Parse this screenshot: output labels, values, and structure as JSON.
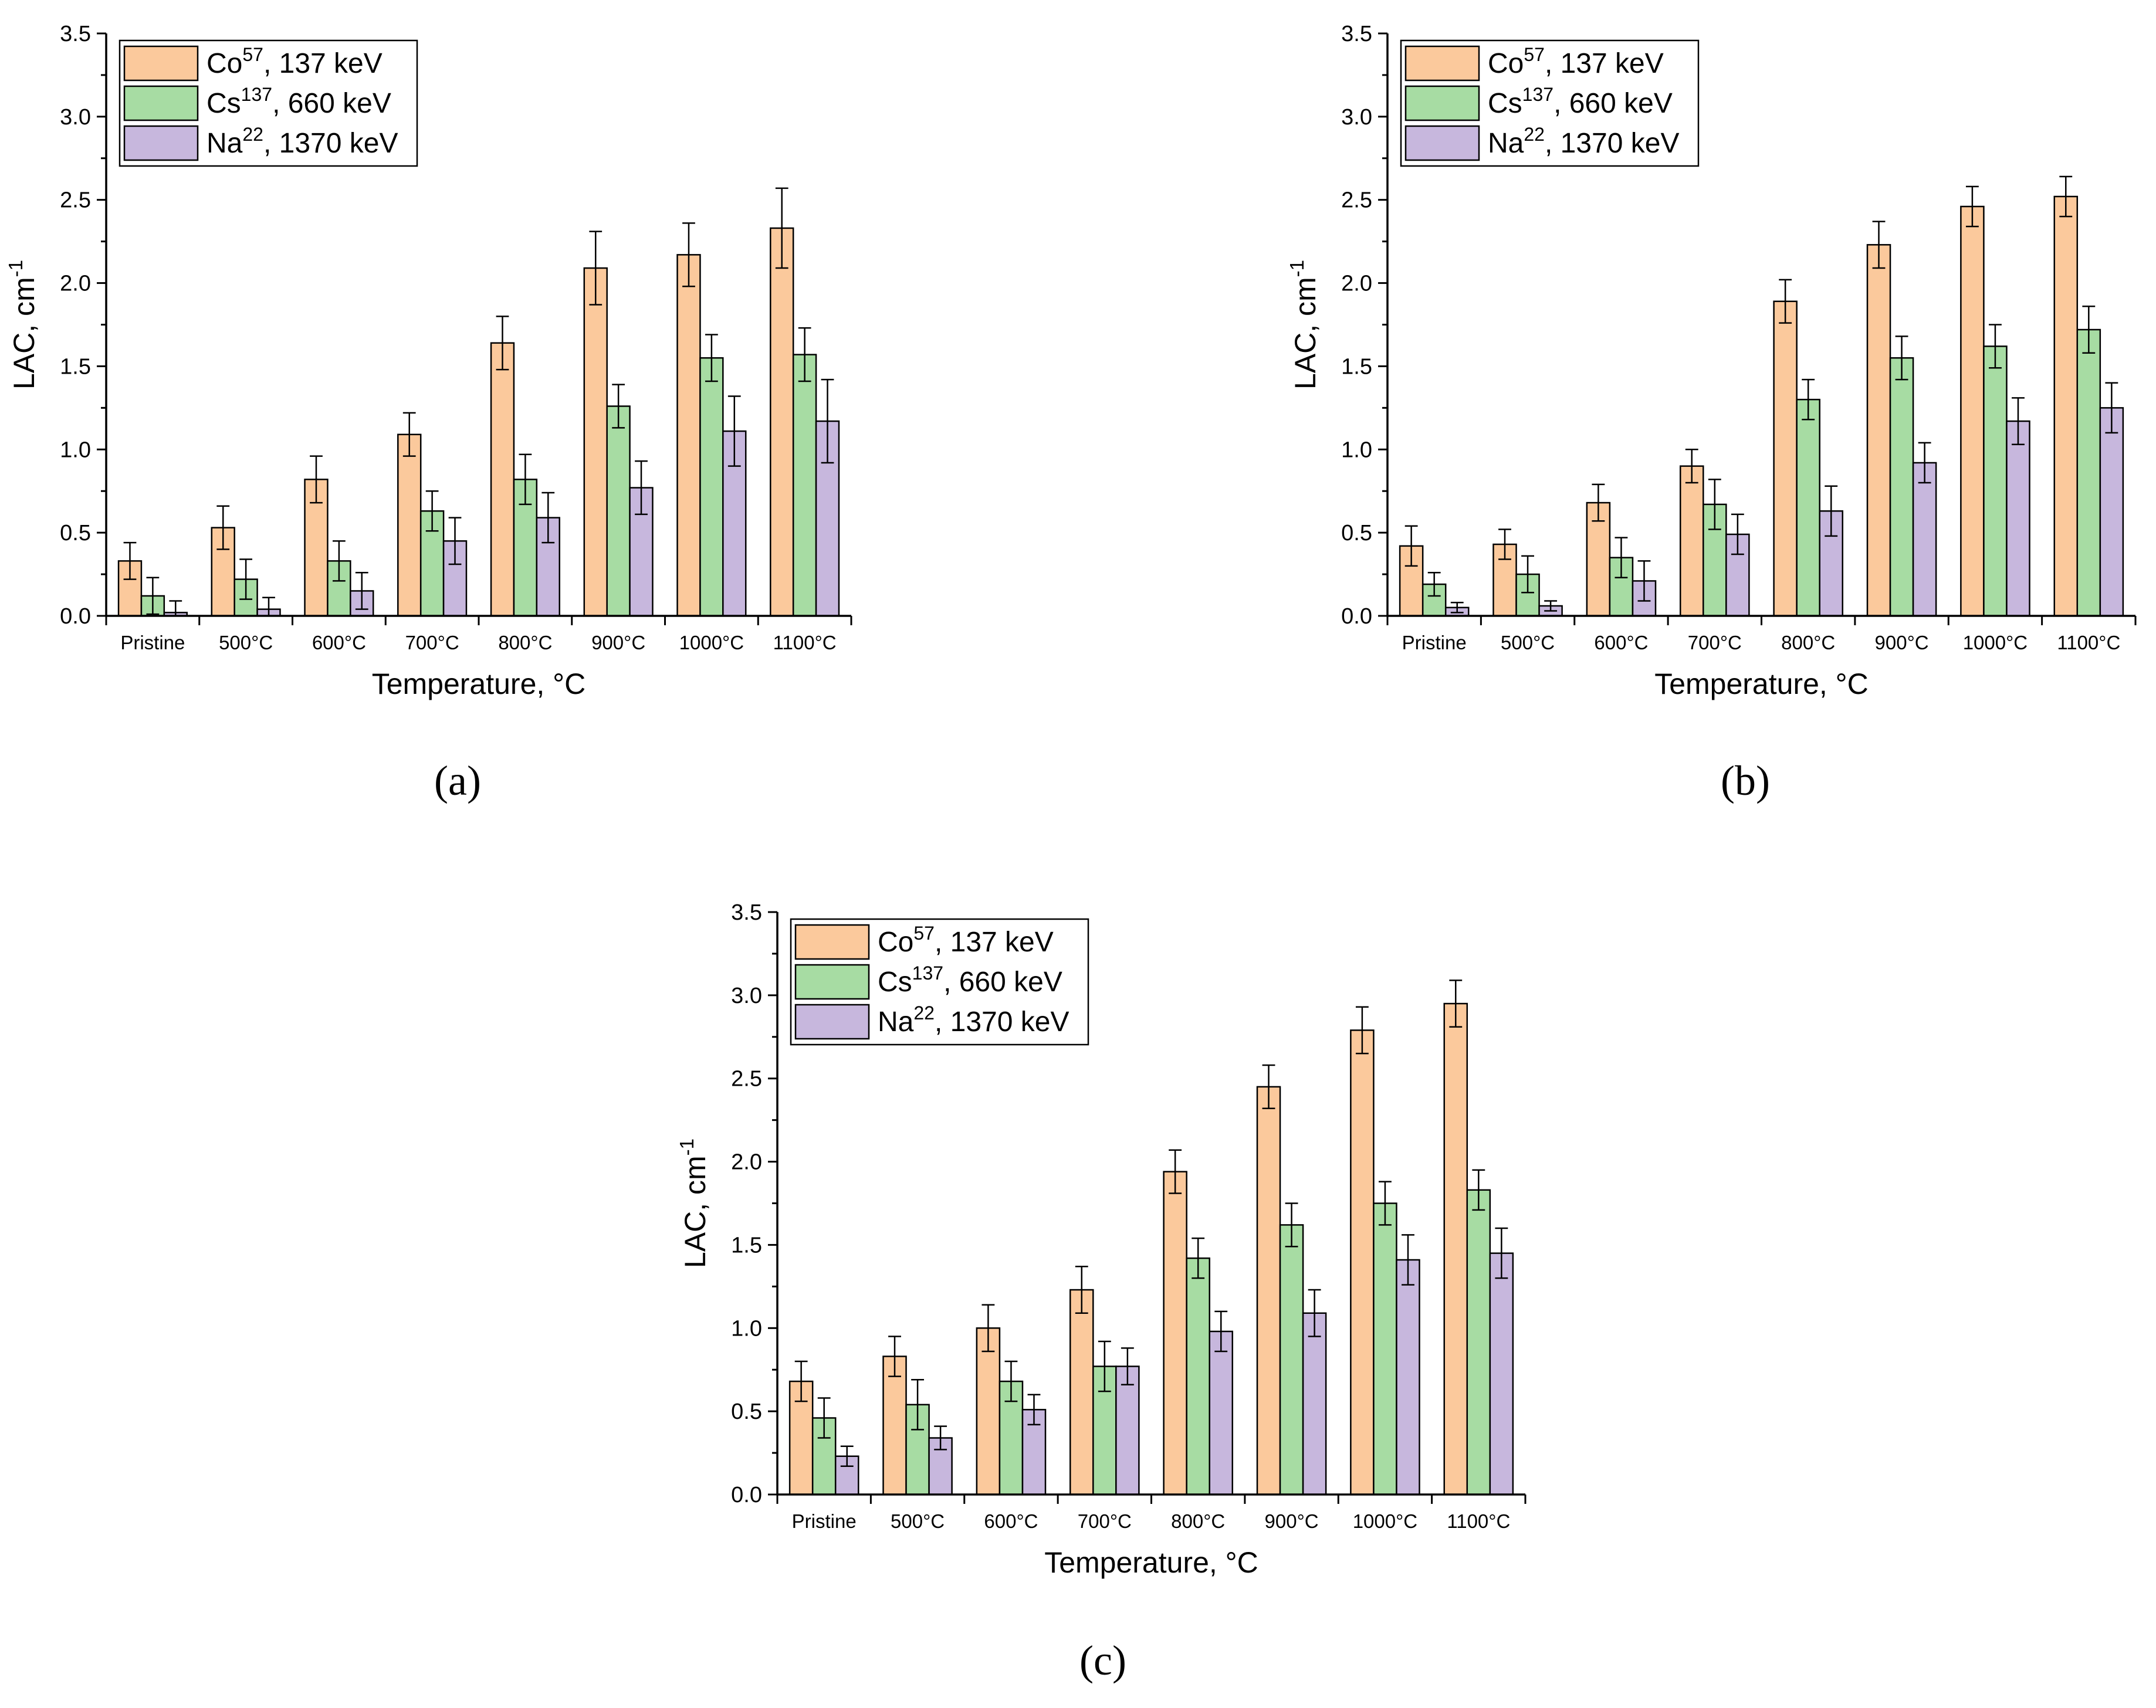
{
  "colors": {
    "co57": "#fbc99c",
    "cs137": "#a7dca3",
    "na22": "#c7b7dd",
    "axis": "#000000"
  },
  "legend_entries": [
    {
      "isotope": "Co",
      "mass": "57",
      "energy": ", 137 keV"
    },
    {
      "isotope": "Cs",
      "mass": "137",
      "energy": ", 660 keV"
    },
    {
      "isotope": "Na",
      "mass": "22",
      "energy": ", 1370 keV"
    }
  ],
  "chart_data": [
    {
      "type": "bar",
      "panel_label": "(a)",
      "xlabel": "Temperature, °C",
      "ylabel": "LAC, cm",
      "ylabel_sup": "-1",
      "ylim": [
        0,
        3.5
      ],
      "yticks": [
        "0.0",
        "0.5",
        "1.0",
        "1.5",
        "2.0",
        "2.5",
        "3.0",
        "3.5"
      ],
      "categories": [
        "Pristine",
        "500°C",
        "600°C",
        "700°C",
        "800°C",
        "900°C",
        "1000°C",
        "1100°C"
      ],
      "legend_position": "top-left",
      "series": [
        {
          "name": "Co57, 137 keV",
          "values": [
            0.33,
            0.53,
            0.82,
            1.09,
            1.64,
            2.09,
            2.17,
            2.33
          ],
          "errors": [
            0.11,
            0.13,
            0.14,
            0.13,
            0.16,
            0.22,
            0.19,
            0.24
          ]
        },
        {
          "name": "Cs137, 660 keV",
          "values": [
            0.12,
            0.22,
            0.33,
            0.63,
            0.82,
            1.26,
            1.55,
            1.57
          ],
          "errors": [
            0.11,
            0.12,
            0.12,
            0.12,
            0.15,
            0.13,
            0.14,
            0.16
          ]
        },
        {
          "name": "Na22, 1370 keV",
          "values": [
            0.02,
            0.04,
            0.15,
            0.45,
            0.59,
            0.77,
            1.11,
            1.17
          ],
          "errors": [
            0.07,
            0.07,
            0.11,
            0.14,
            0.15,
            0.16,
            0.21,
            0.25
          ]
        }
      ]
    },
    {
      "type": "bar",
      "panel_label": "(b)",
      "xlabel": "Temperature, °C",
      "ylabel": "LAC, cm",
      "ylabel_sup": "-1",
      "ylim": [
        0,
        3.5
      ],
      "yticks": [
        "0.0",
        "0.5",
        "1.0",
        "1.5",
        "2.0",
        "2.5",
        "3.0",
        "3.5"
      ],
      "categories": [
        "Pristine",
        "500°C",
        "600°C",
        "700°C",
        "800°C",
        "900°C",
        "1000°C",
        "1100°C"
      ],
      "legend_position": "top-left",
      "series": [
        {
          "name": "Co57, 137 keV",
          "values": [
            0.42,
            0.43,
            0.68,
            0.9,
            1.89,
            2.23,
            2.46,
            2.52
          ],
          "errors": [
            0.12,
            0.09,
            0.11,
            0.1,
            0.13,
            0.14,
            0.12,
            0.12
          ]
        },
        {
          "name": "Cs137, 660 keV",
          "values": [
            0.19,
            0.25,
            0.35,
            0.67,
            1.3,
            1.55,
            1.62,
            1.72
          ],
          "errors": [
            0.07,
            0.11,
            0.12,
            0.15,
            0.12,
            0.13,
            0.13,
            0.14
          ]
        },
        {
          "name": "Na22, 1370 keV",
          "values": [
            0.05,
            0.06,
            0.21,
            0.49,
            0.63,
            0.92,
            1.17,
            1.25
          ],
          "errors": [
            0.03,
            0.03,
            0.12,
            0.12,
            0.15,
            0.12,
            0.14,
            0.15
          ]
        }
      ]
    },
    {
      "type": "bar",
      "panel_label": "(c)",
      "xlabel": "Temperature, °C",
      "ylabel": "LAC, cm",
      "ylabel_sup": "-1",
      "ylim": [
        0,
        3.5
      ],
      "yticks": [
        "0.0",
        "0.5",
        "1.0",
        "1.5",
        "2.0",
        "2.5",
        "3.0",
        "3.5"
      ],
      "categories": [
        "Pristine",
        "500°C",
        "600°C",
        "700°C",
        "800°C",
        "900°C",
        "1000°C",
        "1100°C"
      ],
      "legend_position": "top-left",
      "series": [
        {
          "name": "Co57, 137 keV",
          "values": [
            0.68,
            0.83,
            1.0,
            1.23,
            1.94,
            2.45,
            2.79,
            2.95
          ],
          "errors": [
            0.12,
            0.12,
            0.14,
            0.14,
            0.13,
            0.13,
            0.14,
            0.14
          ]
        },
        {
          "name": "Cs137, 660 keV",
          "values": [
            0.46,
            0.54,
            0.68,
            0.77,
            1.42,
            1.62,
            1.75,
            1.83
          ],
          "errors": [
            0.12,
            0.15,
            0.12,
            0.15,
            0.12,
            0.13,
            0.13,
            0.12
          ]
        },
        {
          "name": "Na22, 1370 keV",
          "values": [
            0.23,
            0.34,
            0.51,
            0.77,
            0.98,
            1.09,
            1.41,
            1.45
          ],
          "errors": [
            0.06,
            0.07,
            0.09,
            0.11,
            0.12,
            0.14,
            0.15,
            0.15
          ]
        }
      ]
    }
  ]
}
